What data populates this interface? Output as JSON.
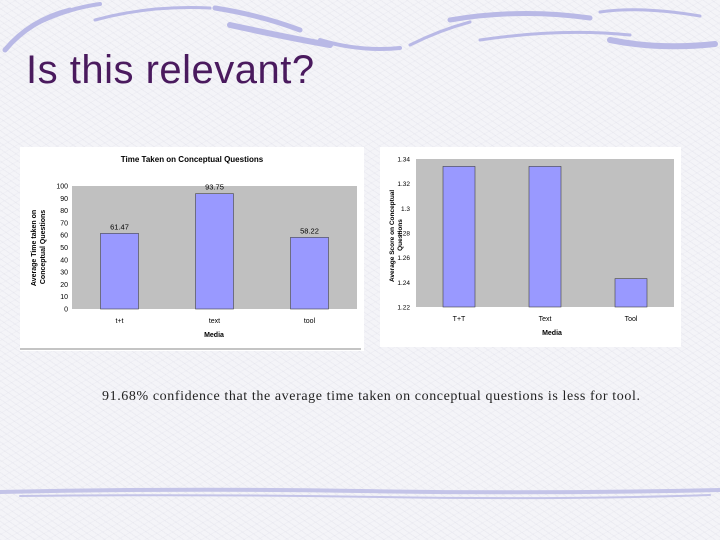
{
  "slide": {
    "title": "Is this relevant?",
    "caption": "91.68% confidence that the average time taken on conceptual questions is less for tool."
  },
  "colors": {
    "bar_fill": "#9999ff",
    "plot_bg": "#c0c0c0",
    "title_color": "#4a1a5e"
  },
  "chart_data": [
    {
      "type": "bar",
      "title": "Time Taken on Conceptual Questions",
      "xlabel": "Media",
      "ylabel": "Average Time taken on Conceptual Questions",
      "categories": [
        "t+t",
        "text",
        "tool"
      ],
      "values": [
        61.47,
        93.75,
        58.22
      ],
      "data_labels": [
        "61.47",
        "93.75",
        "58.22"
      ],
      "ylim": [
        0,
        100
      ],
      "yticks": [
        0,
        10,
        20,
        30,
        40,
        50,
        60,
        70,
        80,
        90,
        100
      ],
      "grid": false,
      "legend": "none"
    },
    {
      "type": "bar",
      "title": "",
      "xlabel": "Media",
      "ylabel": "Average Score on Conceptual Questions",
      "categories": [
        "T+T",
        "Text",
        "Tool"
      ],
      "values": [
        1.334,
        1.334,
        1.243
      ],
      "ylim": [
        1.22,
        1.34
      ],
      "yticks": [
        1.22,
        1.24,
        1.26,
        1.28,
        1.3,
        1.32,
        1.34
      ],
      "ytick_labels": [
        "1.22",
        "1.24",
        "1.26",
        "1.28",
        "1.3",
        "1.32",
        "1.34"
      ],
      "grid": false,
      "legend": "none"
    }
  ]
}
